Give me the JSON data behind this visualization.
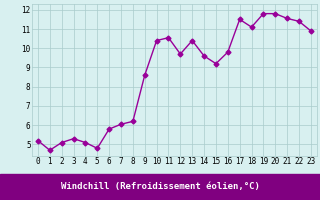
{
  "x": [
    0,
    1,
    2,
    3,
    4,
    5,
    6,
    7,
    8,
    9,
    10,
    11,
    12,
    13,
    14,
    15,
    16,
    17,
    18,
    19,
    20,
    21,
    22,
    23
  ],
  "y": [
    5.2,
    4.7,
    5.1,
    5.3,
    5.1,
    4.8,
    5.8,
    6.05,
    6.2,
    8.6,
    10.4,
    10.55,
    9.7,
    10.4,
    9.6,
    9.2,
    9.8,
    11.5,
    11.1,
    11.8,
    11.8,
    11.55,
    11.4,
    10.9
  ],
  "line_color": "#990099",
  "marker": "D",
  "markersize": 2.5,
  "linewidth": 1.0,
  "bg_color": "#d8f0f0",
  "grid_color": "#aacccc",
  "xlabel": "Windchill (Refroidissement éolien,°C)",
  "xlabel_bg": "#800080",
  "xlabel_color": "#ffffff",
  "xlim": [
    -0.5,
    23.5
  ],
  "ylim": [
    4.4,
    12.3
  ],
  "yticks": [
    5,
    6,
    7,
    8,
    9,
    10,
    11,
    12
  ],
  "xticks": [
    0,
    1,
    2,
    3,
    4,
    5,
    6,
    7,
    8,
    9,
    10,
    11,
    12,
    13,
    14,
    15,
    16,
    17,
    18,
    19,
    20,
    21,
    22,
    23
  ],
  "tick_fontsize": 5.5,
  "xlabel_fontsize": 6.5
}
